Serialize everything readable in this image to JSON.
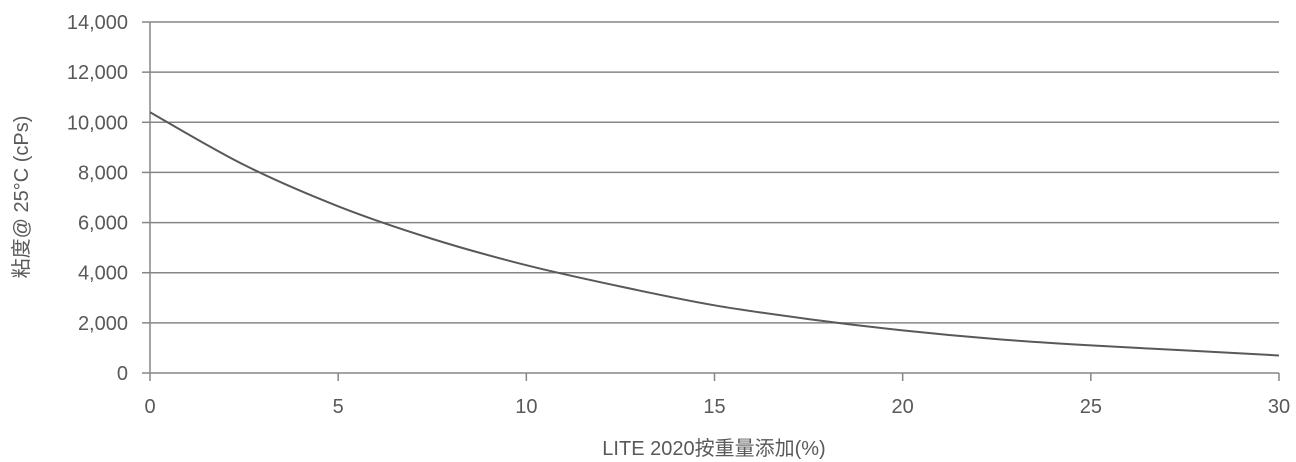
{
  "chart_data": {
    "type": "line",
    "title": "",
    "xlabel": "LITE 2020按重量添加(%)",
    "ylabel": "粘度@ 25°C (cPs)",
    "xlim": [
      0,
      30
    ],
    "ylim": [
      0,
      14000
    ],
    "x_ticks": [
      0,
      5,
      10,
      15,
      20,
      25,
      30
    ],
    "y_ticks": [
      0,
      2000,
      4000,
      6000,
      8000,
      10000,
      12000,
      14000
    ],
    "x_tick_labels": [
      "0",
      "5",
      "10",
      "15",
      "20",
      "25",
      "30"
    ],
    "y_tick_labels": [
      "0",
      "2,000",
      "4,000",
      "6,000",
      "8,000",
      "10,000",
      "12,000",
      "14,000"
    ],
    "grid": "horizontal",
    "legend": "none",
    "series": [
      {
        "x": [
          0,
          2.5,
          5,
          7.5,
          10,
          12.5,
          15,
          17.5,
          20,
          22.5,
          25,
          27.5,
          30
        ],
        "values": [
          10400,
          8300,
          6650,
          5350,
          4300,
          3450,
          2700,
          2150,
          1700,
          1350,
          1100,
          900,
          700
        ],
        "color": "#595959"
      }
    ]
  }
}
